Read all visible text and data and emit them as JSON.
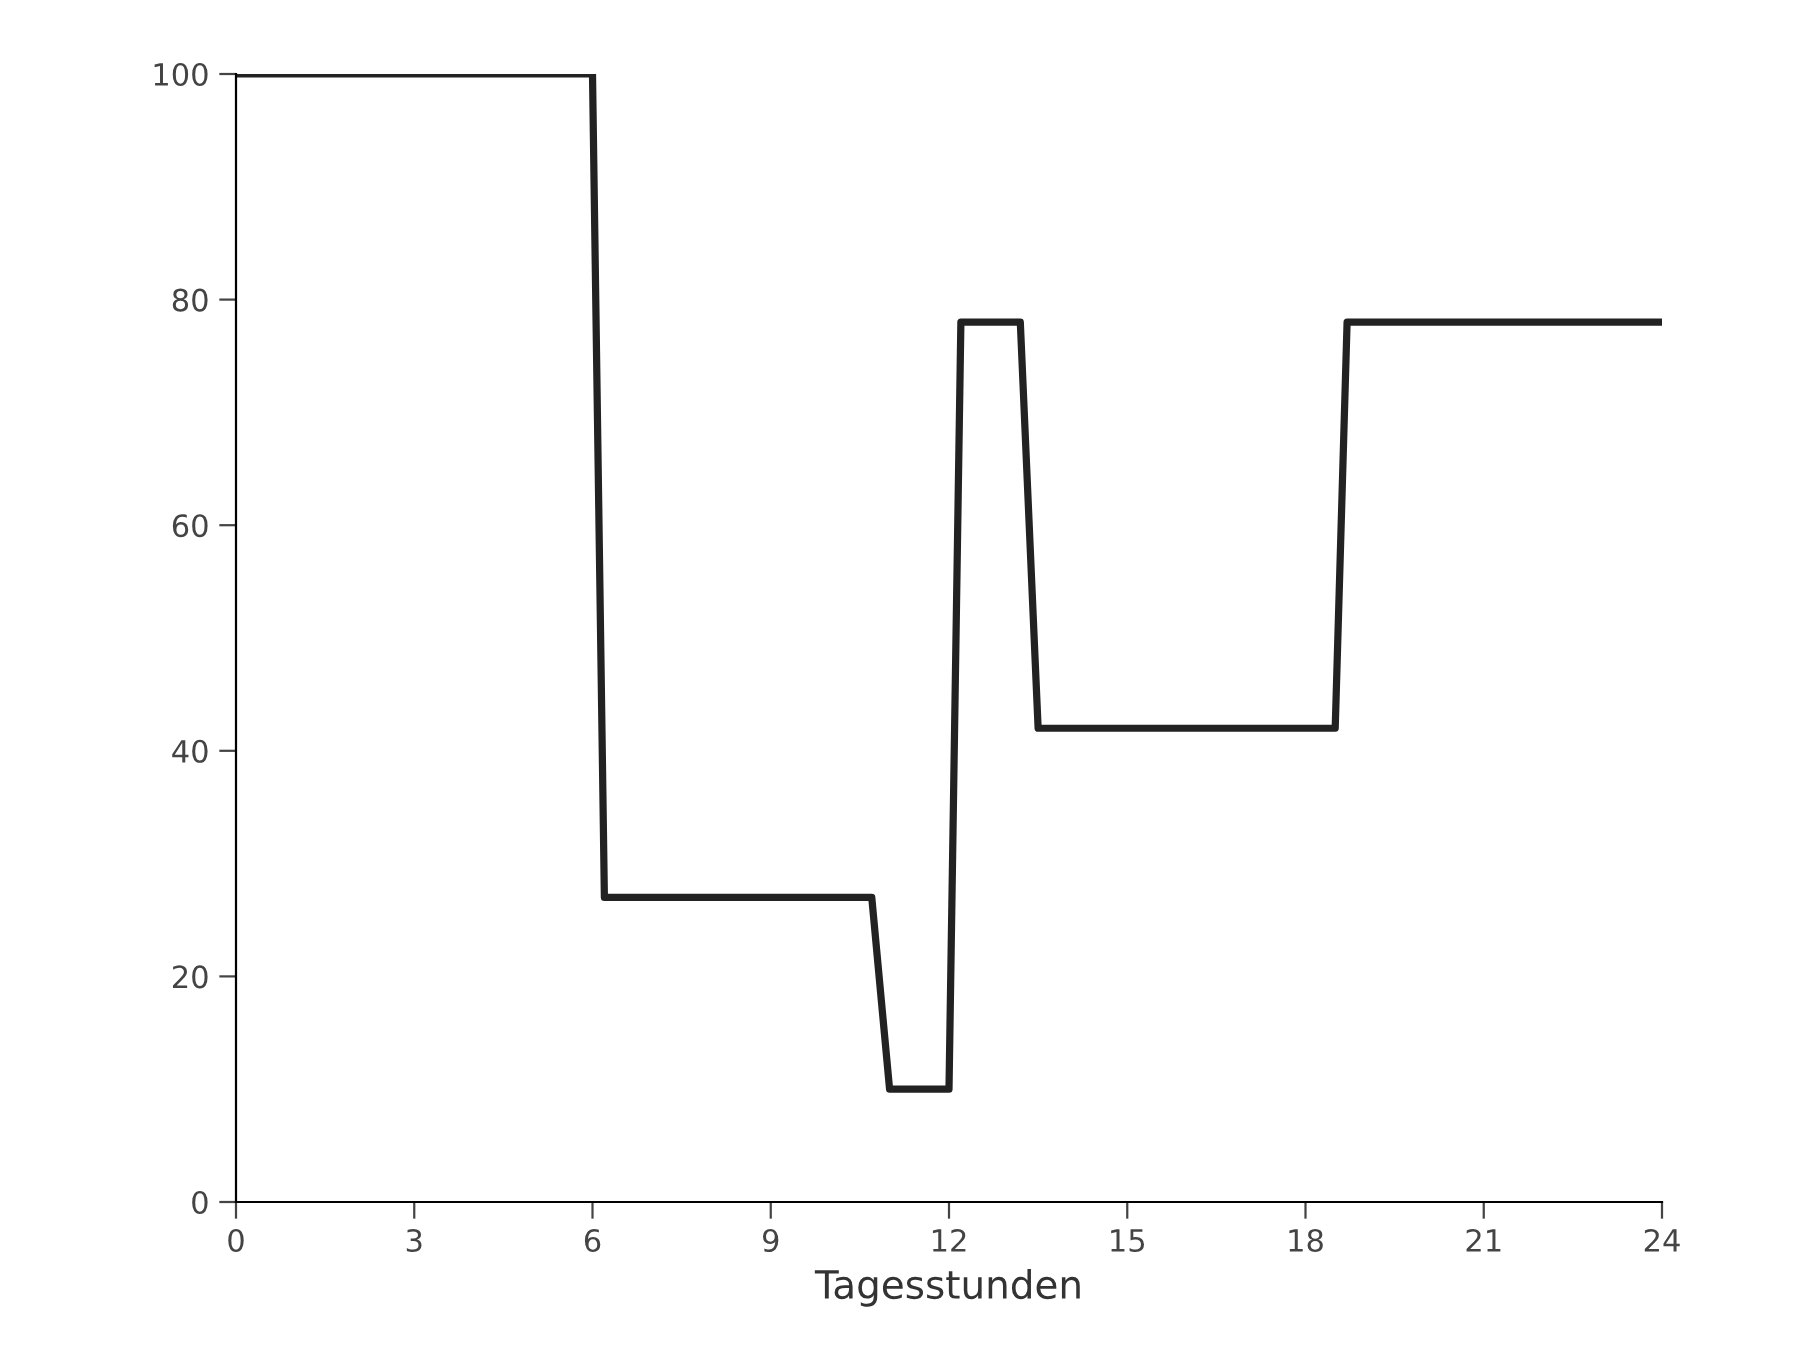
{
  "chart_data": {
    "type": "line",
    "xlabel": "Tagesstunden",
    "x": [
      0,
      6.0,
      6.2,
      10.7,
      11.0,
      12.0,
      12.2,
      13.2,
      13.5,
      18.5,
      18.7,
      24
    ],
    "series": [
      {
        "color": "#222222",
        "values": [
          100,
          100,
          27,
          27,
          10,
          10,
          78,
          78,
          42,
          42,
          78,
          78
        ]
      }
    ],
    "xlim": [
      0,
      24
    ],
    "xticks": [
      0,
      3,
      6,
      9,
      12,
      15,
      18,
      21,
      24
    ],
    "ylim": [
      0,
      100
    ],
    "yticks": [
      0,
      20,
      40,
      60,
      80,
      100
    ],
    "grid": false,
    "marker": "none",
    "line_style": "solid"
  }
}
